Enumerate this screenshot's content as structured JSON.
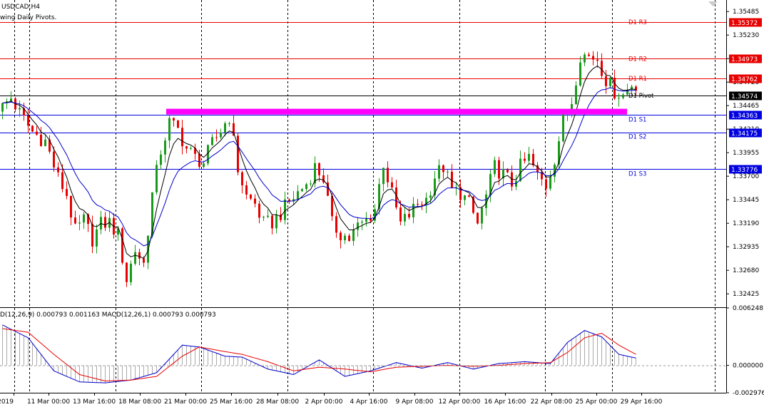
{
  "window": {
    "symbol_label": "USDCAD,H4",
    "indicator_label": "wing Daily Pivots."
  },
  "macd": {
    "label": "D(12,26,9) 0.000793 0.001163 MACD(12,26,1) 0.000793 0.000793"
  },
  "colors": {
    "bull": "#1a9a1a",
    "bear": "#e80000",
    "resistance": "#e80000",
    "support": "#0000e0",
    "pivot": "#000000",
    "zone": "#ff00ff",
    "ma_fast": "#000000",
    "ma_slow": "#0000cc",
    "macd_main": "#0000cc",
    "macd_signal": "#e80000",
    "histogram": "#aaaaaa",
    "grid": "#000000"
  },
  "chart_data": [
    {
      "type": "candlestick",
      "symbol": "USDCAD",
      "timeframe": "H4",
      "ylim": [
        1.3228,
        1.3561
      ],
      "y_ticks": [
        "1.35485",
        "1.35230",
        "1.34975",
        "1.34720",
        "1.34465",
        "1.34210",
        "1.33955",
        "1.33700",
        "1.33445",
        "1.33190",
        "1.32935",
        "1.32680",
        "1.32425"
      ],
      "x_ticks": [
        "2019",
        "11 Mar 00:00",
        "13 Mar 16:00",
        "18 Mar 08:00",
        "21 Mar 00:00",
        "25 Mar 16:00",
        "28 Mar 08:00",
        "2 Apr 00:00",
        "4 Apr 16:00",
        "9 Apr 08:00",
        "12 Apr 00:00",
        "16 Apr 16:00",
        "22 Apr 08:00",
        "25 Apr 00:00",
        "29 Apr 16:00"
      ],
      "pivot_levels": [
        {
          "name": "D1 R3",
          "value": 1.35372,
          "tag": "1.35372",
          "kind": "resistance"
        },
        {
          "name": "D1 R2",
          "value": 1.34973,
          "tag": "1.34973",
          "kind": "resistance"
        },
        {
          "name": "D1 R1",
          "value": 1.34762,
          "tag": "1.34762",
          "kind": "resistance"
        },
        {
          "name": "D1 Pivot",
          "value": 1.34574,
          "tag": "1.34574",
          "kind": "pivot"
        },
        {
          "name": "D1 S1",
          "value": 1.34363,
          "tag": "1.34363",
          "kind": "support"
        },
        {
          "name": "D1 S2",
          "value": 1.34175,
          "tag": "1.34175",
          "kind": "support"
        },
        {
          "name": "D1 S3",
          "value": 1.33776,
          "tag": "1.33776",
          "kind": "support"
        }
      ],
      "zone": {
        "price": 1.344,
        "from_bar": 38,
        "to_bar": 140
      },
      "price_path": [
        [
          0,
          1.344
        ],
        [
          3,
          1.3455
        ],
        [
          5,
          1.3438
        ],
        [
          8,
          1.3418
        ],
        [
          11,
          1.3408
        ],
        [
          14,
          1.3368
        ],
        [
          16,
          1.335
        ],
        [
          18,
          1.331
        ],
        [
          20,
          1.3322
        ],
        [
          22,
          1.3302
        ],
        [
          24,
          1.3318
        ],
        [
          26,
          1.332
        ],
        [
          28,
          1.3306
        ],
        [
          30,
          1.3258
        ],
        [
          32,
          1.329
        ],
        [
          34,
          1.3275
        ],
        [
          36,
          1.335
        ],
        [
          38,
          1.3398
        ],
        [
          40,
          1.3428
        ],
        [
          42,
          1.342
        ],
        [
          44,
          1.34
        ],
        [
          46,
          1.339
        ],
        [
          48,
          1.3385
        ],
        [
          50,
          1.3405
        ],
        [
          52,
          1.342
        ],
        [
          54,
          1.3435
        ],
        [
          56,
          1.3378
        ],
        [
          58,
          1.3348
        ],
        [
          60,
          1.334
        ],
        [
          62,
          1.3318
        ],
        [
          64,
          1.332
        ],
        [
          66,
          1.333
        ],
        [
          68,
          1.3342
        ],
        [
          70,
          1.3352
        ],
        [
          72,
          1.3362
        ],
        [
          74,
          1.338
        ],
        [
          76,
          1.3368
        ],
        [
          78,
          1.3318
        ],
        [
          80,
          1.3308
        ],
        [
          82,
          1.3302
        ],
        [
          84,
          1.3315
        ],
        [
          86,
          1.3322
        ],
        [
          88,
          1.3335
        ],
        [
          90,
          1.3385
        ],
        [
          92,
          1.335
        ],
        [
          94,
          1.3318
        ],
        [
          96,
          1.3328
        ],
        [
          98,
          1.334
        ],
        [
          100,
          1.3345
        ],
        [
          102,
          1.337
        ],
        [
          104,
          1.338
        ],
        [
          106,
          1.3355
        ],
        [
          108,
          1.3352
        ],
        [
          110,
          1.334
        ],
        [
          112,
          1.3318
        ],
        [
          114,
          1.3348
        ],
        [
          116,
          1.338
        ],
        [
          118,
          1.3372
        ],
        [
          120,
          1.3362
        ],
        [
          122,
          1.338
        ],
        [
          124,
          1.339
        ],
        [
          126,
          1.337
        ],
        [
          128,
          1.336
        ],
        [
          130,
          1.339
        ],
        [
          132,
          1.343
        ],
        [
          134,
          1.3452
        ],
        [
          136,
          1.3502
        ],
        [
          138,
          1.35
        ],
        [
          140,
          1.3498
        ],
        [
          142,
          1.3475
        ],
        [
          144,
          1.3462
        ],
        [
          146,
          1.3458
        ],
        [
          148,
          1.347
        ]
      ]
    },
    {
      "type": "macd",
      "ylim": [
        -0.002976,
        0.006248
      ],
      "y_ticks": [
        "0.006248",
        "0.000000",
        "-0.002976"
      ],
      "main_path": [
        [
          0,
          0.0044
        ],
        [
          6,
          0.003
        ],
        [
          12,
          -0.0006
        ],
        [
          18,
          -0.0018
        ],
        [
          24,
          -0.0019
        ],
        [
          30,
          -0.0016
        ],
        [
          36,
          -0.0008
        ],
        [
          42,
          0.0022
        ],
        [
          46,
          0.002
        ],
        [
          52,
          0.001
        ],
        [
          56,
          0.0009
        ],
        [
          62,
          -0.0004
        ],
        [
          68,
          -0.001
        ],
        [
          74,
          0.0006
        ],
        [
          80,
          -0.0012
        ],
        [
          86,
          -0.0006
        ],
        [
          92,
          0.0003
        ],
        [
          98,
          -0.0003
        ],
        [
          104,
          0.0003
        ],
        [
          110,
          -0.0004
        ],
        [
          116,
          0.0002
        ],
        [
          122,
          0.0004
        ],
        [
          128,
          0.0002
        ],
        [
          132,
          0.0025
        ],
        [
          136,
          0.0038
        ],
        [
          140,
          0.0031
        ],
        [
          144,
          0.0012
        ],
        [
          148,
          0.0008
        ]
      ],
      "signal_path": [
        [
          0,
          0.004
        ],
        [
          6,
          0.0036
        ],
        [
          12,
          0.0012
        ],
        [
          18,
          -0.001
        ],
        [
          24,
          -0.0017
        ],
        [
          30,
          -0.0016
        ],
        [
          36,
          -0.0012
        ],
        [
          42,
          0.001
        ],
        [
          46,
          0.002
        ],
        [
          52,
          0.0015
        ],
        [
          56,
          0.0012
        ],
        [
          62,
          0.0004
        ],
        [
          68,
          -0.0006
        ],
        [
          74,
          -0.0002
        ],
        [
          80,
          -0.0004
        ],
        [
          86,
          -0.0007
        ],
        [
          92,
          -0.0002
        ],
        [
          98,
          -0.0001
        ],
        [
          104,
          0.0
        ],
        [
          110,
          -0.0001
        ],
        [
          116,
          0.0
        ],
        [
          122,
          0.0002
        ],
        [
          128,
          0.0003
        ],
        [
          132,
          0.0014
        ],
        [
          136,
          0.003
        ],
        [
          140,
          0.0035
        ],
        [
          144,
          0.0022
        ],
        [
          148,
          0.0012
        ]
      ]
    }
  ]
}
